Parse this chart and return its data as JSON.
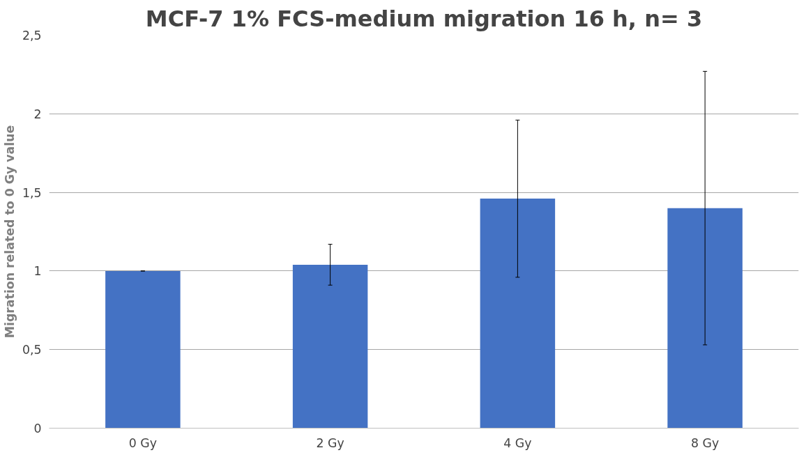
{
  "chart_data": {
    "type": "bar",
    "title": "MCF-7 1% FCS-medium migration 16 h, n= 3",
    "ylabel": "Migration related to 0 Gy value",
    "categories": [
      "0 Gy",
      "2 Gy",
      "4 Gy",
      "8 Gy"
    ],
    "values": [
      1.0,
      1.04,
      1.46,
      1.4
    ],
    "errors": [
      0,
      0.13,
      0.5,
      0.87
    ],
    "color": "#4472c4",
    "ylim": [
      0,
      2.5
    ],
    "yticks": [
      0,
      {
        "value": 0.5,
        "label": "0,5"
      },
      1,
      {
        "value": 1.5,
        "label": "1,5"
      },
      2,
      {
        "value": 2.5,
        "label": "2,5"
      }
    ],
    "grid": "y"
  }
}
